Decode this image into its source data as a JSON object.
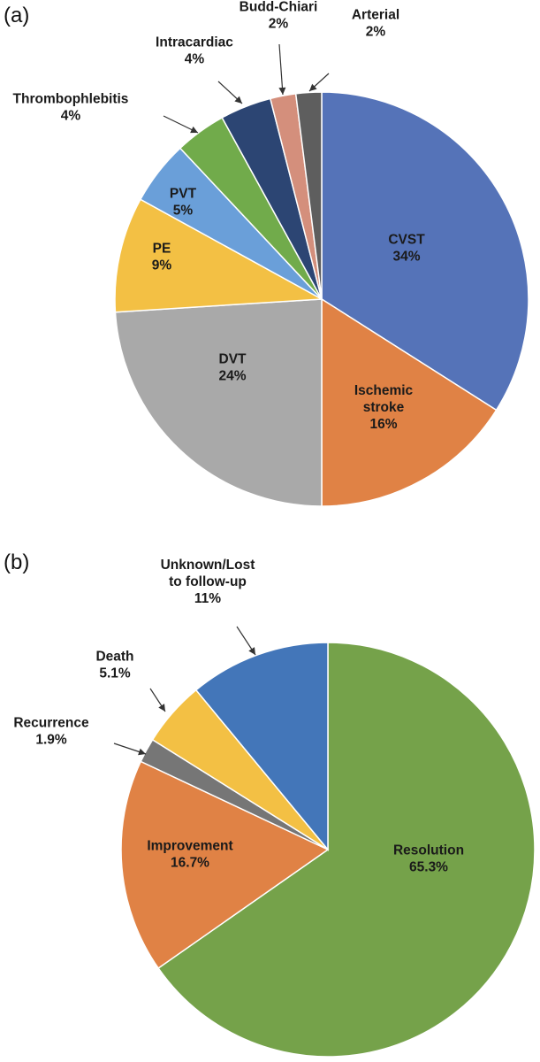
{
  "panels": [
    {
      "label": "(a)"
    },
    {
      "label": "(b)"
    }
  ],
  "chart_data": [
    {
      "type": "pie",
      "title": "",
      "start": "12 o'clock, clockwise",
      "slices": [
        {
          "name": "CVST",
          "value": 34,
          "text": "34%",
          "color": "#5573b8"
        },
        {
          "name": "Ischemic stroke",
          "name_lines": [
            "Ischemic",
            "stroke"
          ],
          "value": 16,
          "text": "16%",
          "color": "#e08245"
        },
        {
          "name": "DVT",
          "value": 24,
          "text": "24%",
          "color": "#a9a9a9"
        },
        {
          "name": "PE",
          "value": 9,
          "text": "9%",
          "color": "#f3c044"
        },
        {
          "name": "PVT",
          "value": 5,
          "text": "5%",
          "color": "#6a9fd9"
        },
        {
          "name": "Thrombophlebitis",
          "value": 4,
          "text": "4%",
          "color": "#71ab4b"
        },
        {
          "name": "Intracardiac",
          "value": 4,
          "text": "4%",
          "color": "#2c4573"
        },
        {
          "name": "Budd-Chiari",
          "value": 2,
          "text": "2%",
          "color": "#d48f7c"
        },
        {
          "name": "Arterial",
          "value": 2,
          "text": "2%",
          "color": "#5e5e5e"
        }
      ]
    },
    {
      "type": "pie",
      "title": "",
      "start": "12 o'clock, clockwise",
      "slices": [
        {
          "name": "Resolution",
          "value": 65.3,
          "text": "65.3%",
          "color": "#75a24a"
        },
        {
          "name": "Improvement",
          "value": 16.7,
          "text": "16.7%",
          "color": "#e08245"
        },
        {
          "name": "Recurrence",
          "value": 1.9,
          "text": "1.9%",
          "color": "#767676"
        },
        {
          "name": "Death",
          "value": 5.1,
          "text": "5.1%",
          "color": "#f3c044"
        },
        {
          "name": "Unknown/Lost to follow-up",
          "name_lines": [
            "Unknown/Lost",
            "to follow-up"
          ],
          "value": 11,
          "text": "11%",
          "color": "#4376b9"
        }
      ]
    }
  ]
}
